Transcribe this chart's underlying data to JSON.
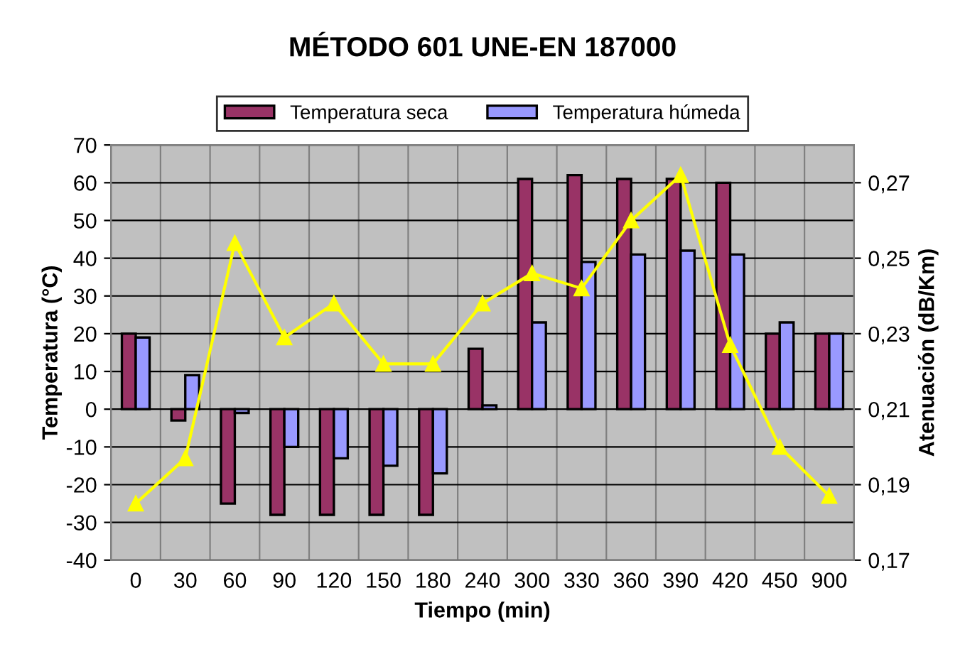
{
  "chart_data": {
    "type": "bar",
    "title": "MÉTODO 601 UNE-EN 187000",
    "xlabel": "Tiempo (min)",
    "ylabel": "Temperatura (°C)",
    "y2label": "Atenuación (dB/Km)",
    "categories": [
      "0",
      "30",
      "60",
      "90",
      "120",
      "150",
      "180",
      "240",
      "300",
      "330",
      "360",
      "390",
      "420",
      "450",
      "900"
    ],
    "series": [
      {
        "name": "Temperatura seca",
        "type": "bar",
        "color": "#993366",
        "values": [
          20,
          -3,
          -25,
          -28,
          -28,
          -28,
          -28,
          16,
          61,
          62,
          61,
          61,
          60,
          20,
          20
        ]
      },
      {
        "name": "Temperatura húmeda",
        "type": "bar",
        "color": "#9999ff",
        "values": [
          19,
          9,
          -1,
          -10,
          -13,
          -15,
          -17,
          1,
          23,
          39,
          41,
          42,
          41,
          23,
          20
        ]
      },
      {
        "type": "line",
        "axis": "y2",
        "color": "#ffff00",
        "marker": "triangle",
        "values": [
          0.185,
          0.197,
          0.254,
          0.229,
          0.238,
          0.222,
          0.222,
          0.238,
          0.246,
          0.242,
          0.26,
          0.272,
          0.227,
          0.2,
          0.187
        ]
      }
    ],
    "ylim": [
      -40,
      70
    ],
    "yticks": [
      -40,
      -30,
      -20,
      -10,
      0,
      10,
      20,
      30,
      40,
      50,
      60,
      70
    ],
    "y2lim": [
      0.17,
      0.28
    ],
    "y2ticks": [
      {
        "value": 0.17,
        "label": "0,17"
      },
      {
        "value": 0.19,
        "label": "0,19"
      },
      {
        "value": 0.21,
        "label": "0,21"
      },
      {
        "value": 0.23,
        "label": "0,23"
      },
      {
        "value": 0.25,
        "label": "0,25"
      },
      {
        "value": 0.27,
        "label": "0,27"
      }
    ],
    "grid": true,
    "legend": "top"
  }
}
